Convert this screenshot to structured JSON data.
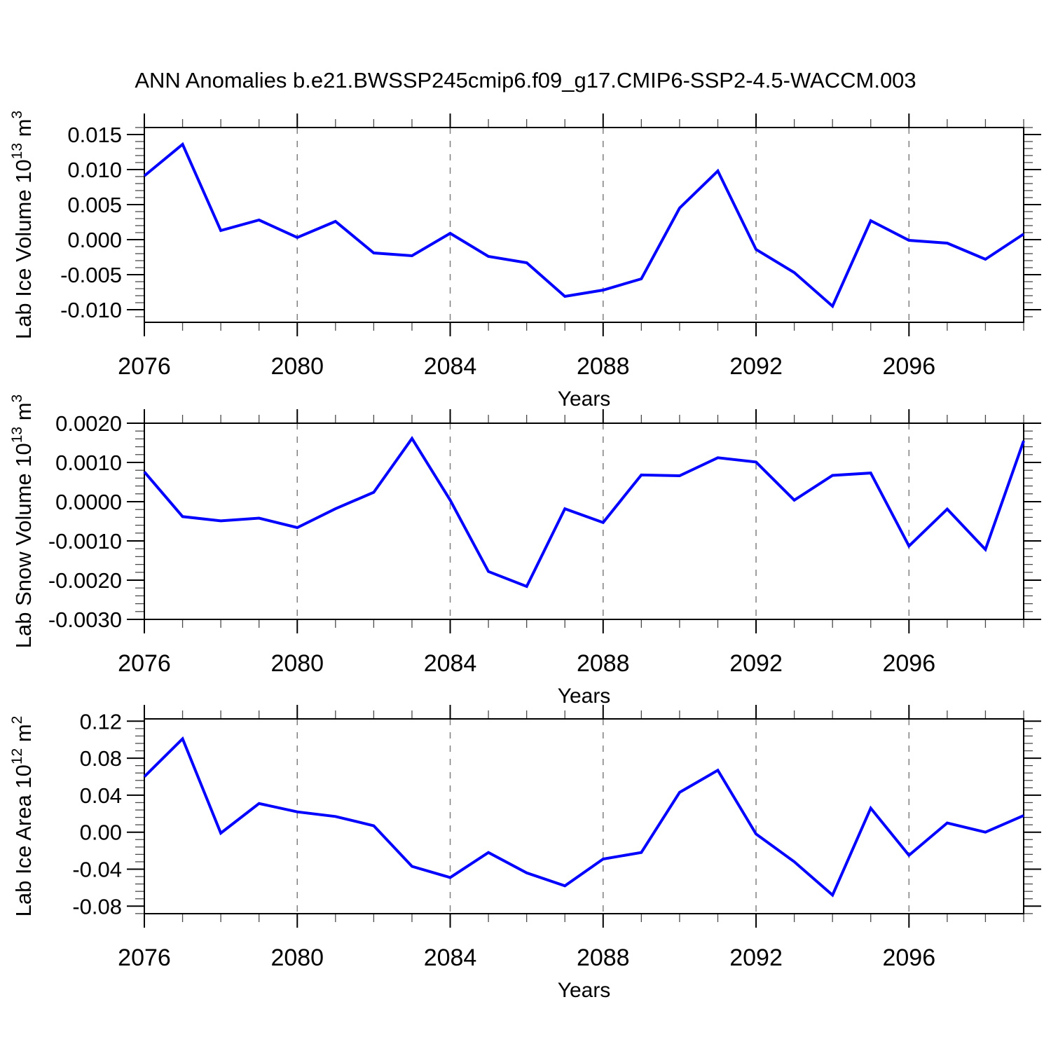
{
  "title": "ANN Anomalies b.e21.BWSSP245cmip6.f09_g17.CMIP6-SSP2-4.5-WACCM.003",
  "colors": {
    "line": "#0000ff",
    "gridline": "#7f7f7f",
    "axis": "#000000",
    "background": "#ffffff"
  },
  "chart_data": {
    "type": "line",
    "title": "ANN Anomalies b.e21.BWSSP245cmip6.f09_g17.CMIP6-SSP2-4.5-WACCM.003",
    "xlabel": "Years",
    "x": [
      2076,
      2077,
      2078,
      2079,
      2080,
      2081,
      2082,
      2083,
      2084,
      2085,
      2086,
      2087,
      2088,
      2089,
      2090,
      2091,
      2092,
      2093,
      2094,
      2095,
      2096,
      2097,
      2098,
      2099
    ],
    "xlim": [
      2076,
      2099
    ],
    "xticks_major": [
      2076,
      2080,
      2084,
      2088,
      2092,
      2096
    ],
    "grid_x": [
      2080,
      2084,
      2088,
      2092,
      2096
    ],
    "grid_on": "vertical-dashed-only",
    "legend": "none",
    "series_color": "#0000ff",
    "panels": [
      {
        "id": "lab-ice-volume",
        "ylabel": "Lab Ice Volume 10^13 m^3",
        "ylabel_parts": [
          {
            "t": "Lab Ice Volume 10",
            "sup": false
          },
          {
            "t": "13",
            "sup": true
          },
          {
            "t": " m",
            "sup": false
          },
          {
            "t": "3",
            "sup": true
          }
        ],
        "ylim": [
          -0.0118,
          0.016
        ],
        "yticks": [
          0.015,
          0.01,
          0.005,
          0.0,
          -0.005,
          -0.01
        ],
        "ytick_labels": [
          "0.015",
          "0.010",
          "0.005",
          "0.000",
          "-0.005",
          "-0.010"
        ],
        "minor_step": 0.001,
        "values": [
          0.0091,
          0.0136,
          0.0013,
          0.0028,
          0.0003,
          0.0026,
          -0.0019,
          -0.0023,
          0.0009,
          -0.0024,
          -0.0033,
          -0.0081,
          -0.0072,
          -0.0056,
          0.0045,
          0.0098,
          -0.0014,
          -0.0047,
          -0.0095,
          0.0027,
          -0.0001,
          -0.0005,
          -0.0028,
          0.0008
        ]
      },
      {
        "id": "lab-snow-volume",
        "ylabel": "Lab Snow Volume 10^13 m^3",
        "ylabel_parts": [
          {
            "t": "Lab Snow Volume 10",
            "sup": false
          },
          {
            "t": "13",
            "sup": true
          },
          {
            "t": " m",
            "sup": false
          },
          {
            "t": "3",
            "sup": true
          }
        ],
        "ylim": [
          -0.003,
          0.002
        ],
        "yticks": [
          0.002,
          0.001,
          0.0,
          -0.001,
          -0.002,
          -0.003
        ],
        "ytick_labels": [
          "0.0020",
          "0.0010",
          "0.0000",
          "-0.0010",
          "-0.0020",
          "-0.0030"
        ],
        "minor_step": 0.0002,
        "values": [
          0.00076,
          -0.00038,
          -0.00049,
          -0.00042,
          -0.00066,
          -0.00018,
          0.00024,
          0.00161,
          4e-05,
          -0.00178,
          -0.00216,
          -0.00018,
          -0.00053,
          0.00068,
          0.00066,
          0.00112,
          0.00101,
          4e-05,
          0.00067,
          0.00073,
          -0.00113,
          -0.00019,
          -0.00122,
          0.00155
        ]
      },
      {
        "id": "lab-ice-area",
        "ylabel": "Lab Ice Area 10^12 m^2",
        "ylabel_parts": [
          {
            "t": "Lab Ice Area 10",
            "sup": false
          },
          {
            "t": "12",
            "sup": true
          },
          {
            "t": " m",
            "sup": false
          },
          {
            "t": "2",
            "sup": true
          }
        ],
        "ylim": [
          -0.0881,
          0.1225
        ],
        "yticks": [
          0.12,
          0.08,
          0.04,
          0.0,
          -0.04,
          -0.08
        ],
        "ytick_labels": [
          "0.12",
          "0.08",
          "0.04",
          "0.00",
          "-0.04",
          "-0.08"
        ],
        "minor_step": 0.008,
        "values": [
          0.06,
          0.101,
          -0.001,
          0.031,
          0.022,
          0.017,
          0.007,
          -0.037,
          -0.049,
          -0.022,
          -0.044,
          -0.058,
          -0.029,
          -0.022,
          0.043,
          0.067,
          -0.002,
          -0.032,
          -0.068,
          0.026,
          -0.025,
          0.01,
          0.0,
          0.018
        ]
      }
    ]
  }
}
